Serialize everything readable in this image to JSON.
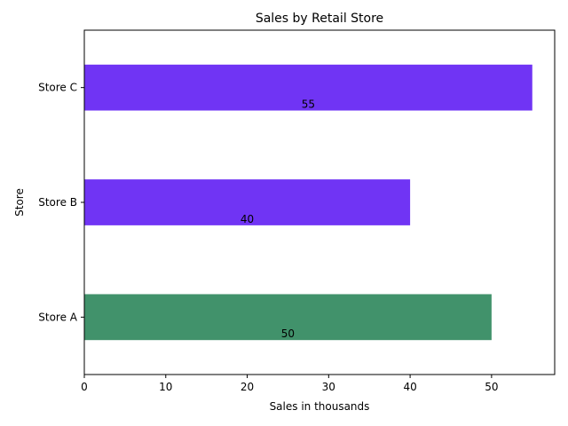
{
  "chart_data": {
    "type": "bar",
    "orientation": "horizontal",
    "title": "Sales by Retail Store",
    "xlabel": "Sales in thousands",
    "ylabel": "Store",
    "categories": [
      "Store A",
      "Store B",
      "Store C"
    ],
    "values": [
      50,
      40,
      55
    ],
    "data_labels": [
      "50",
      "40",
      "55"
    ],
    "colors": [
      "#41926b",
      "#7034f4",
      "#7034f4"
    ],
    "xlim": [
      0,
      57.75
    ],
    "xticks": [
      0,
      10,
      20,
      30,
      40,
      50
    ],
    "grid": false,
    "legend": "none"
  }
}
